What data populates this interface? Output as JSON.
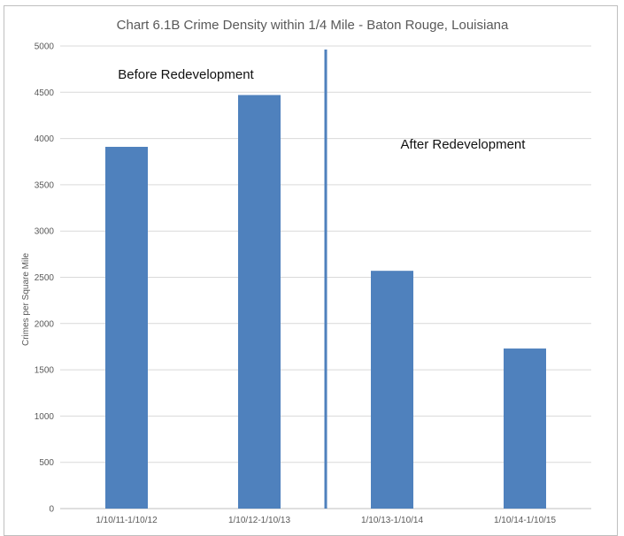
{
  "chart_data": {
    "type": "bar",
    "title": "Chart 6.1B Crime Density within 1/4 Mile - Baton Rouge, Louisiana",
    "xlabel": "",
    "ylabel": "Crimes per Square Mile",
    "categories": [
      "1/10/11-1/10/12",
      "1/10/12-1/10/13",
      "1/10/13-1/10/14",
      "1/10/14-1/10/15"
    ],
    "values": [
      3910,
      4470,
      2570,
      1730
    ],
    "ylim": [
      0,
      5000
    ],
    "yticks": [
      "0",
      "500",
      "1000",
      "1500",
      "2000",
      "2500",
      "3000",
      "3500",
      "4000",
      "4500",
      "5000"
    ],
    "grid": true,
    "legend": "none",
    "bar_color": "#4f81bd",
    "divider_color": "#4f81bd",
    "divider_after_category_index": 1,
    "annotations": {
      "before": "Before Redevelopment",
      "after": "After Redevelopment"
    }
  }
}
